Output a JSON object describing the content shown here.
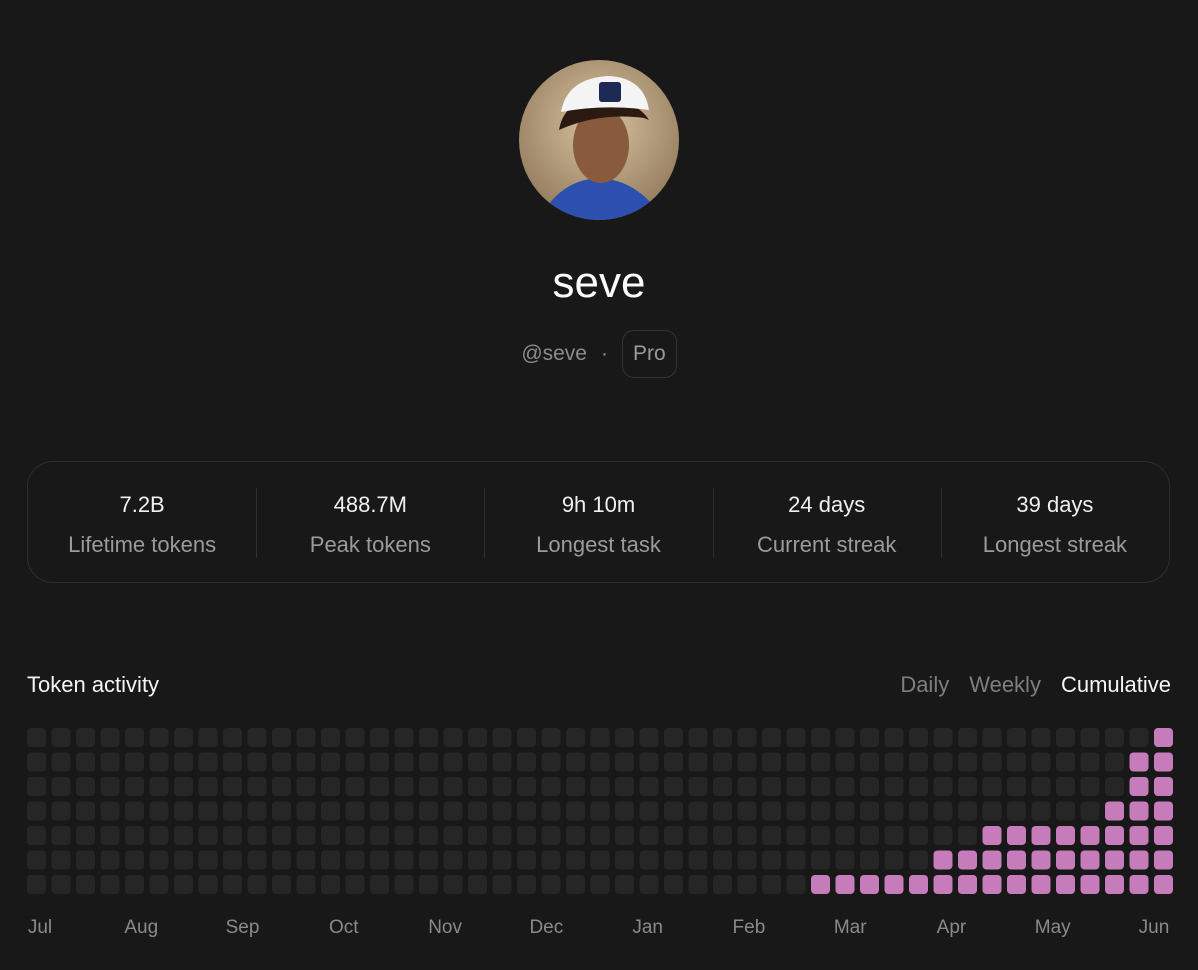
{
  "profile": {
    "name": "seve",
    "handle": "@seve",
    "separator": "·",
    "badge": "Pro"
  },
  "stats": [
    {
      "value": "7.2B",
      "label": "Lifetime tokens"
    },
    {
      "value": "488.7M",
      "label": "Peak tokens"
    },
    {
      "value": "9h 10m",
      "label": "Longest task"
    },
    {
      "value": "24 days",
      "label": "Current streak"
    },
    {
      "value": "39 days",
      "label": "Longest streak"
    }
  ],
  "chart_data": {
    "type": "cell-grid",
    "title": "Token activity",
    "tabs": [
      "Daily",
      "Weekly",
      "Cumulative"
    ],
    "active_tab": 2,
    "x_labels": [
      "Jul",
      "Aug",
      "Sep",
      "Oct",
      "Nov",
      "Dec",
      "Jan",
      "Feb",
      "Mar",
      "Apr",
      "May",
      "Jun"
    ],
    "values": [
      0,
      0,
      0,
      0,
      0,
      0,
      0,
      0,
      0,
      0,
      0,
      0,
      0,
      0,
      0,
      0,
      0,
      0,
      0,
      0,
      0,
      0,
      0,
      0,
      0,
      0,
      0,
      0,
      0,
      0,
      0,
      0,
      1,
      1,
      1,
      1,
      1,
      2,
      2,
      3,
      3,
      3,
      3,
      3,
      4,
      6,
      7
    ],
    "ylim": [
      0,
      7
    ],
    "color": "#c67cba",
    "empty_color": "#262626"
  }
}
